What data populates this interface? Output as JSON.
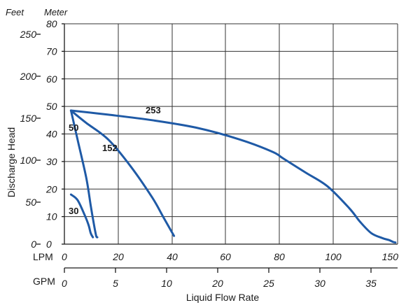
{
  "chart_data": {
    "type": "line",
    "title": "",
    "xlabel": "Liquid Flow Rate",
    "ylabel": "Discharge Head",
    "grid": true,
    "legend": "none",
    "line_color": "#1f5aa6",
    "units_left": [
      "Feet",
      "Meter"
    ],
    "y_meter": {
      "label": "Meter",
      "lim": [
        0,
        80
      ],
      "ticks": [
        "0",
        "10",
        "20",
        "30",
        "40",
        "50",
        "60",
        "70",
        "80"
      ]
    },
    "y_feet": {
      "label": "Feet",
      "ticks": [
        "0",
        "50",
        "100",
        "150",
        "200",
        "250"
      ]
    },
    "x_lpm": {
      "label": "LPM",
      "lim": [
        0,
        152
      ],
      "ticks": [
        "0",
        "20",
        "40",
        "60",
        "80",
        "100",
        "150"
      ]
    },
    "x_gpm": {
      "label": "GPM",
      "ticks": [
        "0",
        "5",
        "10",
        "20",
        "25",
        "30",
        "35"
      ]
    },
    "series": [
      {
        "name": "253",
        "x": [
          3,
          20,
          40,
          60,
          80,
          95,
          100,
          110,
          120,
          130,
          135,
          140,
          145,
          148,
          150,
          151
        ],
        "y": [
          48.5,
          47,
          45,
          42.3,
          38,
          33.5,
          31,
          26,
          21,
          13,
          8,
          4,
          2.2,
          1.5,
          0.8,
          0.6
        ]
      },
      {
        "name": "152",
        "x": [
          3,
          10,
          20,
          30,
          40,
          45,
          50
        ],
        "y": [
          48.5,
          44,
          38,
          28.5,
          17,
          10,
          3
        ]
      },
      {
        "name": "50",
        "x": [
          3,
          6,
          10,
          12,
          13.5,
          14.5,
          15
        ],
        "y": [
          48.5,
          38,
          24,
          14,
          7,
          3,
          2.5
        ]
      },
      {
        "name": "30",
        "x": [
          3,
          6,
          9,
          11,
          12,
          13
        ],
        "y": [
          18,
          16,
          11,
          7,
          4,
          2.5
        ]
      }
    ]
  }
}
